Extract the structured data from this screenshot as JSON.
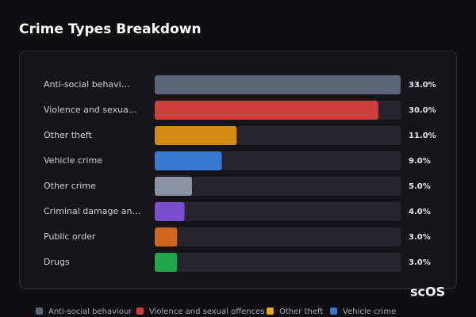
{
  "chart_data": {
    "type": "hbar",
    "title": "Crime Types Breakdown",
    "categories": [
      "Anti-social behavi…",
      "Violence and sexua…",
      "Other theft",
      "Vehicle crime",
      "Other crime",
      "Criminal damage an…",
      "Public order",
      "Drugs"
    ],
    "values": [
      33,
      30,
      11,
      9,
      5,
      4,
      3,
      3
    ],
    "value_labels": [
      "33.0%",
      "30.0%",
      "11.0%",
      "9.0%",
      "5.0%",
      "4.0%",
      "3.0%",
      "3.0%"
    ],
    "colors": [
      "#5b6579",
      "#d03e3e",
      "#d38a12",
      "#3a78d6",
      "#8a93a5",
      "#7a4fcf",
      "#d1661f",
      "#22a64a"
    ],
    "xlim": [
      0,
      33
    ],
    "legend": [
      {
        "name": "Anti-social behaviour",
        "color": "#5b6579"
      },
      {
        "name": "Violence and sexual offences",
        "color": "#d03e3e"
      },
      {
        "name": "Other theft",
        "color": "#f0a323"
      },
      {
        "name": "Vehicle crime",
        "color": "#3a78d6"
      }
    ]
  },
  "logo": "scOS"
}
